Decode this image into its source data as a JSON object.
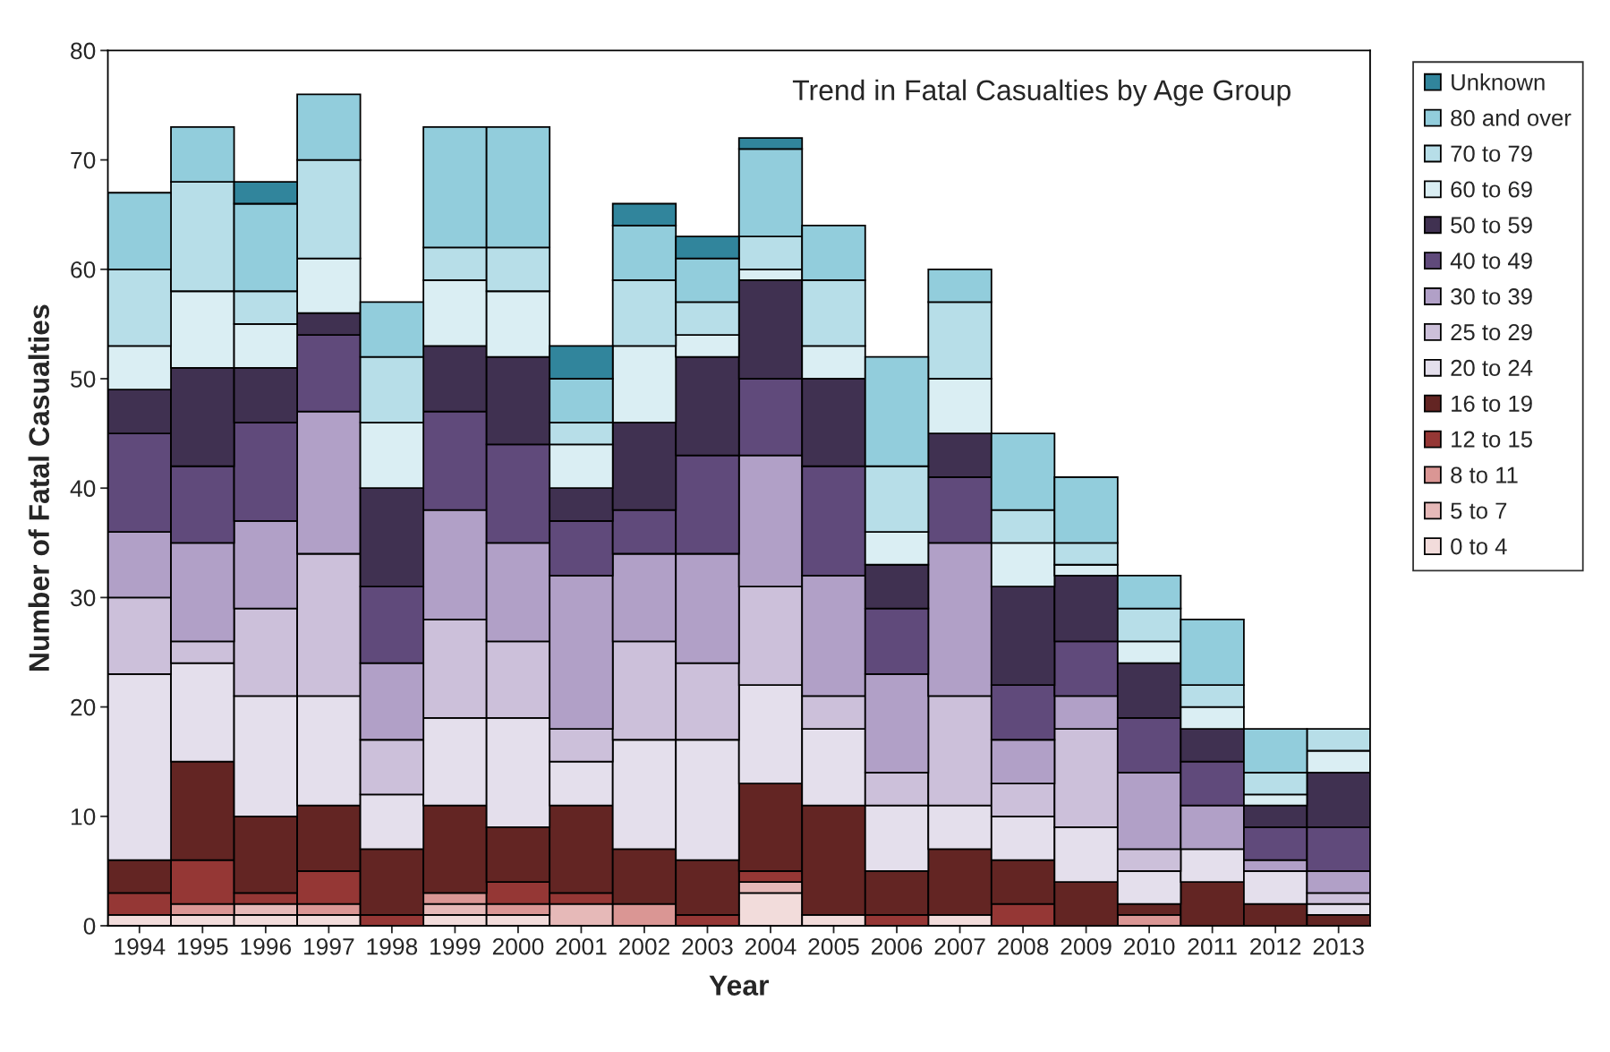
{
  "chart_data": {
    "type": "bar",
    "stacked": true,
    "title": "Trend in Fatal Casualties by Age Group",
    "xlabel": "Year",
    "ylabel": "Number of Fatal Casualties",
    "categories": [
      "1994",
      "1995",
      "1996",
      "1997",
      "1998",
      "1999",
      "2000",
      "2001",
      "2002",
      "2003",
      "2004",
      "2005",
      "2006",
      "2007",
      "2008",
      "2009",
      "2010",
      "2011",
      "2012",
      "2013"
    ],
    "ylim": [
      0,
      80
    ],
    "yticks": [
      0,
      10,
      20,
      30,
      40,
      50,
      60,
      70,
      80
    ],
    "grid": false,
    "legend": "right",
    "series": [
      {
        "name": "0 to 4",
        "color": "#f2dcdb",
        "values": [
          1,
          1,
          1,
          1,
          0,
          1,
          1,
          0,
          0,
          0,
          3,
          1,
          0,
          1,
          0,
          0,
          0,
          0,
          0,
          0
        ]
      },
      {
        "name": "5 to 7",
        "color": "#e6b9b8",
        "values": [
          0,
          0,
          1,
          0,
          0,
          1,
          0,
          2,
          0,
          0,
          1,
          0,
          0,
          0,
          0,
          0,
          0,
          0,
          0,
          0
        ]
      },
      {
        "name": "8 to 11",
        "color": "#da9694",
        "values": [
          0,
          1,
          0,
          1,
          0,
          1,
          1,
          0,
          2,
          0,
          0,
          0,
          0,
          0,
          0,
          0,
          1,
          0,
          0,
          0
        ]
      },
      {
        "name": "12 to 15",
        "color": "#953735",
        "values": [
          2,
          4,
          1,
          3,
          1,
          0,
          2,
          1,
          0,
          1,
          1,
          0,
          1,
          0,
          2,
          0,
          0,
          0,
          0,
          0
        ]
      },
      {
        "name": "16 to 19",
        "color": "#632523",
        "values": [
          3,
          9,
          7,
          6,
          6,
          8,
          5,
          8,
          5,
          5,
          8,
          10,
          4,
          6,
          4,
          4,
          1,
          4,
          2,
          1
        ]
      },
      {
        "name": "20 to 24",
        "color": "#e4dfec",
        "values": [
          17,
          9,
          11,
          10,
          5,
          8,
          10,
          4,
          10,
          11,
          9,
          7,
          6,
          4,
          4,
          5,
          3,
          3,
          3,
          1
        ]
      },
      {
        "name": "25 to 29",
        "color": "#ccc0da",
        "values": [
          7,
          2,
          8,
          13,
          5,
          9,
          7,
          3,
          9,
          7,
          9,
          3,
          3,
          10,
          3,
          9,
          2,
          0,
          0,
          1
        ]
      },
      {
        "name": "30 to 39",
        "color": "#b1a0c7",
        "values": [
          6,
          9,
          8,
          13,
          7,
          10,
          9,
          14,
          8,
          10,
          12,
          11,
          9,
          14,
          4,
          3,
          7,
          4,
          1,
          2
        ]
      },
      {
        "name": "40 to 49",
        "color": "#604a7b",
        "values": [
          9,
          7,
          9,
          7,
          7,
          9,
          9,
          5,
          4,
          9,
          7,
          10,
          6,
          6,
          5,
          5,
          5,
          4,
          3,
          4
        ]
      },
      {
        "name": "50 to 59",
        "color": "#403151",
        "values": [
          4,
          9,
          5,
          2,
          9,
          6,
          8,
          3,
          8,
          9,
          9,
          8,
          4,
          4,
          9,
          6,
          5,
          3,
          2,
          5
        ]
      },
      {
        "name": "60 to 69",
        "color": "#daeef3",
        "values": [
          4,
          7,
          4,
          5,
          6,
          6,
          6,
          4,
          7,
          2,
          1,
          3,
          3,
          5,
          4,
          1,
          2,
          2,
          1,
          2
        ]
      },
      {
        "name": "70 to 79",
        "color": "#b7dee8",
        "values": [
          7,
          10,
          3,
          9,
          6,
          3,
          4,
          2,
          6,
          3,
          3,
          6,
          6,
          7,
          3,
          2,
          3,
          2,
          2,
          2
        ]
      },
      {
        "name": "80 and over",
        "color": "#92cddc",
        "values": [
          7,
          5,
          8,
          6,
          5,
          11,
          11,
          4,
          5,
          4,
          8,
          5,
          10,
          3,
          7,
          6,
          3,
          6,
          4,
          0
        ]
      },
      {
        "name": "Unknown",
        "color": "#31859c",
        "values": [
          0,
          0,
          2,
          0,
          0,
          0,
          0,
          3,
          2,
          2,
          1,
          0,
          0,
          0,
          0,
          0,
          0,
          0,
          0,
          0
        ]
      }
    ]
  }
}
